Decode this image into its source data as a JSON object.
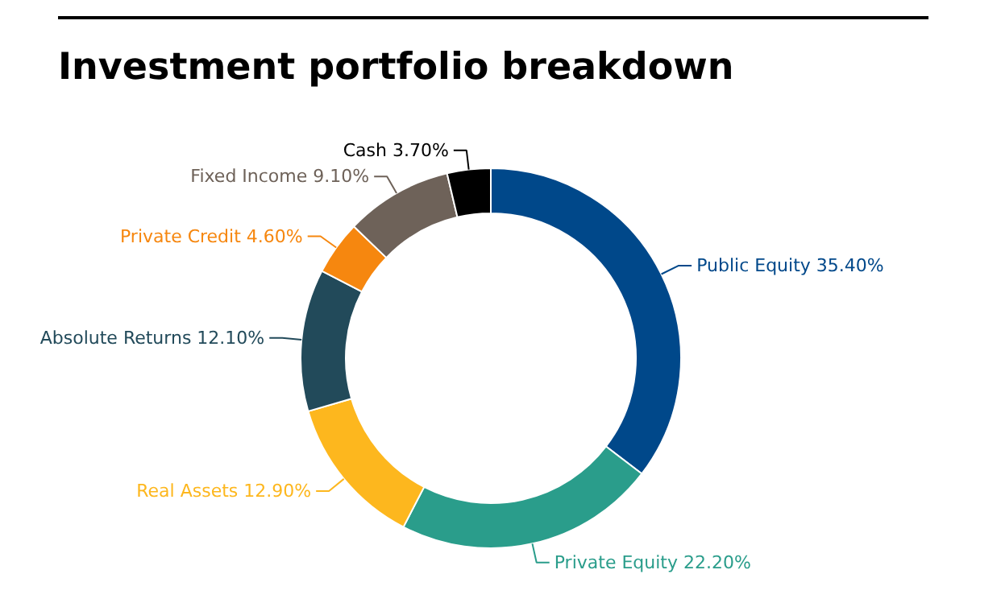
{
  "chart_data": {
    "type": "donut",
    "title": "Investment portfolio breakdown",
    "categories": [
      "Public Equity",
      "Private Equity",
      "Real Assets",
      "Absolute Returns",
      "Private Credit",
      "Fixed Income",
      "Cash"
    ],
    "values": [
      35.4,
      22.2,
      12.9,
      12.1,
      4.6,
      9.1,
      3.7
    ],
    "value_labels": [
      "35.40%",
      "22.20%",
      "12.90%",
      "12.10%",
      "4.60%",
      "9.10%",
      "3.70%"
    ],
    "colors": [
      "#00488a",
      "#2a9d8b",
      "#fdb71e",
      "#224a5a",
      "#f6870f",
      "#6e6259",
      "#000000"
    ]
  }
}
